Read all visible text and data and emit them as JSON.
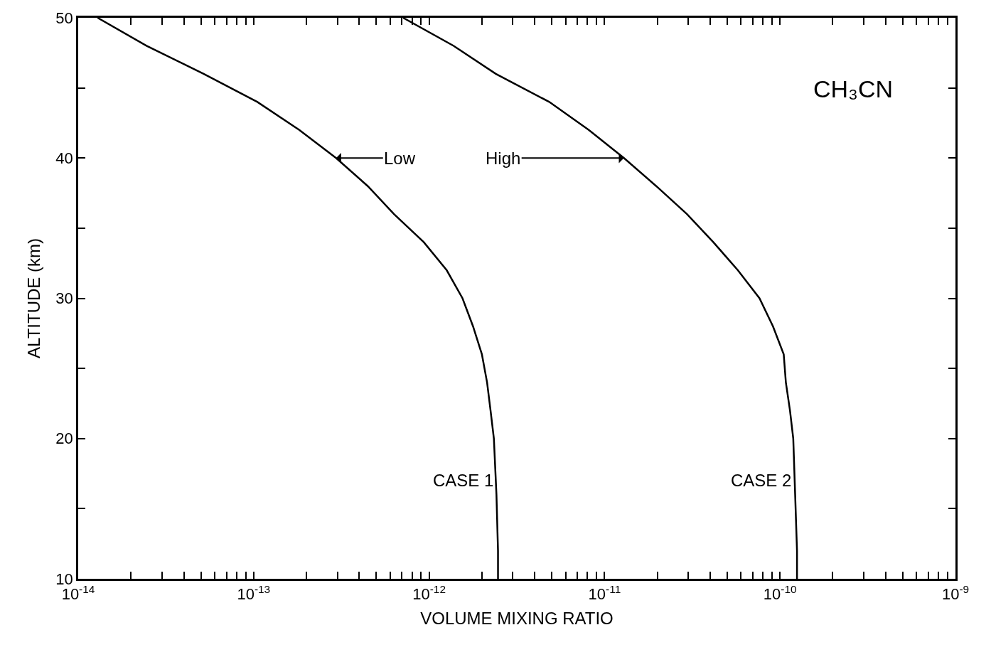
{
  "chart_data": {
    "type": "line",
    "xlabel": "VOLUME MIXING RATIO",
    "ylabel": "ALTITUDE (km)",
    "log": "x",
    "marker": "none",
    "line_style": "solid",
    "xlim": [
      1e-14,
      1e-09
    ],
    "xticks": [
      {
        "value": 1e-14,
        "label": "10$^{-14}$"
      },
      {
        "value": 2e-14,
        "label": null
      },
      {
        "value": 3e-14,
        "label": null
      },
      {
        "value": 4e-14,
        "label": null
      },
      {
        "value": 5e-14,
        "label": null
      },
      {
        "value": 6e-14,
        "label": null
      },
      {
        "value": 7e-14,
        "label": null
      },
      {
        "value": 8e-14,
        "label": null
      },
      {
        "value": 9e-14,
        "label": null
      },
      {
        "value": 1e-13,
        "label": "10$^{-13}$"
      },
      {
        "value": 2e-13,
        "label": null
      },
      {
        "value": 3e-13,
        "label": null
      },
      {
        "value": 4e-13,
        "label": null
      },
      {
        "value": 5e-13,
        "label": null
      },
      {
        "value": 6e-13,
        "label": null
      },
      {
        "value": 7e-13,
        "label": null
      },
      {
        "value": 8e-13,
        "label": null
      },
      {
        "value": 9e-13,
        "label": null
      },
      {
        "value": 1e-12,
        "label": "10$^{-12}$"
      },
      {
        "value": 2e-12,
        "label": null
      },
      {
        "value": 3e-12,
        "label": null
      },
      {
        "value": 4e-12,
        "label": null
      },
      {
        "value": 5e-12,
        "label": null
      },
      {
        "value": 6e-12,
        "label": null
      },
      {
        "value": 7e-12,
        "label": null
      },
      {
        "value": 8e-12,
        "label": null
      },
      {
        "value": 9e-12,
        "label": null
      },
      {
        "value": 1e-11,
        "label": "10$^{-11}$"
      },
      {
        "value": 2e-11,
        "label": null
      },
      {
        "value": 3e-11,
        "label": null
      },
      {
        "value": 4e-11,
        "label": null
      },
      {
        "value": 5e-11,
        "label": null
      },
      {
        "value": 6e-11,
        "label": null
      },
      {
        "value": 7e-11,
        "label": null
      },
      {
        "value": 8e-11,
        "label": null
      },
      {
        "value": 9e-11,
        "label": null
      },
      {
        "value": 1e-10,
        "label": "10$^{-10}$"
      },
      {
        "value": 2e-10,
        "label": null
      },
      {
        "value": 3e-10,
        "label": null
      },
      {
        "value": 4e-10,
        "label": null
      },
      {
        "value": 5e-10,
        "label": null
      },
      {
        "value": 6e-10,
        "label": null
      },
      {
        "value": 7e-10,
        "label": null
      },
      {
        "value": 8e-10,
        "label": null
      },
      {
        "value": 9e-10,
        "label": null
      },
      {
        "value": 1e-09,
        "label": "10$^{-9}$"
      }
    ],
    "ylim": [
      10,
      50
    ],
    "yticks": [
      10,
      {
        "value": 15,
        "label": null
      },
      20,
      {
        "value": 25,
        "label": null
      },
      30,
      {
        "value": 35,
        "label": null
      },
      40,
      {
        "value": 45,
        "label": null
      },
      50
    ],
    "series": [
      {
        "color": "#000000",
        "x": [
          1.29e-14,
          2.45e-14,
          5.19e-14,
          1.05e-13,
          1.82e-13,
          2.95e-13,
          4.47e-13,
          6.31e-13,
          9.33e-13,
          1.26e-12,
          1.55e-12,
          1.78e-12,
          2e-12,
          2.14e-12,
          2.24e-12,
          2.34e-12,
          2.42e-12,
          2.47e-12,
          2.47e-12
        ],
        "values": [
          50,
          48,
          46,
          44,
          42,
          40,
          38,
          36,
          34,
          32,
          30,
          28,
          26,
          24,
          22,
          20,
          16,
          12,
          10
        ]
      },
      {
        "color": "#000000",
        "x": [
          7.11e-13,
          1.38e-12,
          2.4e-12,
          4.84e-12,
          8.13e-12,
          1.29e-11,
          1.97e-11,
          2.95e-11,
          4.17e-11,
          5.75e-11,
          7.64e-11,
          9.12e-11,
          1.05e-10,
          1.08e-10,
          1.14e-10,
          1.19e-10,
          1.22e-10,
          1.25e-10,
          1.25e-10
        ],
        "values": [
          50,
          48,
          46,
          44,
          42,
          40,
          38,
          36,
          34,
          32,
          30,
          28,
          26,
          24,
          22,
          20,
          16,
          12,
          10
        ]
      }
    ],
    "annotations": [
      "CH₃CN",
      {
        "text": "Low",
        "x": 2.95e-13,
        "y": 40
      },
      {
        "text": "High",
        "x": 1.29e-11,
        "y": 40
      },
      {
        "text": "CASE 1",
        "x": 2.45e-12,
        "y": 17
      },
      {
        "text": "CASE 2",
        "x": 1.22e-10,
        "y": 17
      }
    ]
  }
}
